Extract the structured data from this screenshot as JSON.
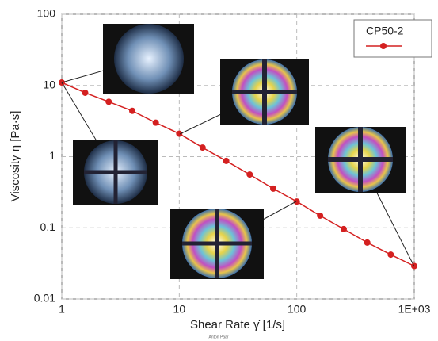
{
  "chart_data": {
    "type": "line",
    "xlabel": "Shear Rate γ̇ [1/s]",
    "ylabel": "Viscosity η [Pa·s]",
    "watermark": "Anton Paar",
    "xscale": "log",
    "yscale": "log",
    "xlim": [
      1,
      1000
    ],
    "ylim": [
      0.01,
      100
    ],
    "xticks": [
      1,
      10,
      100,
      {
        "value": 1000,
        "label": "1E+03"
      }
    ],
    "yticks": [
      0.01,
      0.1,
      1,
      10,
      100
    ],
    "grid": true,
    "legend": "top-right",
    "x": [
      1,
      1.58,
      2.51,
      3.98,
      6.31,
      10,
      15.8,
      25.1,
      39.8,
      63.1,
      100,
      158,
      251,
      398,
      631,
      1000
    ],
    "series": [
      {
        "name": "CP50-2",
        "color": "#d42020",
        "values": [
          11,
          7.9,
          5.9,
          4.4,
          3.0,
          2.1,
          1.34,
          0.87,
          0.56,
          0.355,
          0.234,
          0.148,
          0.096,
          0.062,
          0.042,
          0.029
        ]
      }
    ]
  }
}
